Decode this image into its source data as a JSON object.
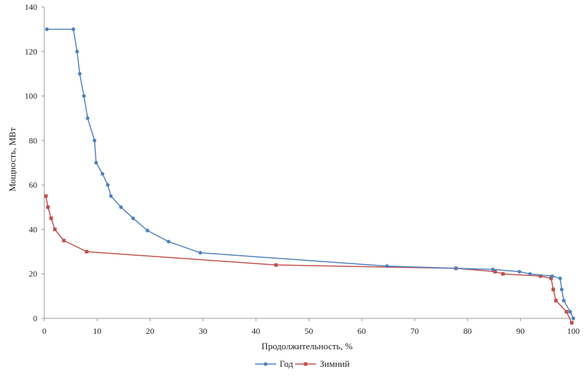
{
  "chart_data": {
    "type": "line",
    "title": "",
    "xlabel": "Продолжительность, %",
    "ylabel": "Мощность, МВт",
    "xlim": [
      0,
      100
    ],
    "ylim": [
      0,
      140
    ],
    "xticks": [
      0,
      10,
      20,
      30,
      40,
      50,
      60,
      70,
      80,
      90,
      100
    ],
    "yticks": [
      0,
      20,
      40,
      60,
      80,
      100,
      120,
      140
    ],
    "grid": false,
    "legend_position": "bottom",
    "series": [
      {
        "name": "Год",
        "color": "#4f81bd",
        "marker": "circle",
        "points": [
          [
            0.5,
            130
          ],
          [
            5.5,
            130
          ],
          [
            6.2,
            120
          ],
          [
            6.7,
            110
          ],
          [
            7.5,
            100
          ],
          [
            8.2,
            90
          ],
          [
            9.5,
            80
          ],
          [
            9.8,
            70
          ],
          [
            11.0,
            65
          ],
          [
            12.0,
            60
          ],
          [
            12.6,
            55
          ],
          [
            14.5,
            50
          ],
          [
            16.8,
            45
          ],
          [
            19.5,
            39.5
          ],
          [
            23.5,
            34.5
          ],
          [
            29.5,
            29.5
          ],
          [
            64.8,
            23.5
          ],
          [
            77.8,
            22.5
          ],
          [
            84.8,
            22
          ],
          [
            89.8,
            21
          ],
          [
            91.8,
            20
          ],
          [
            96.0,
            19
          ],
          [
            97.5,
            18
          ],
          [
            97.8,
            13
          ],
          [
            98.2,
            8
          ],
          [
            99.4,
            3
          ],
          [
            100,
            0
          ]
        ]
      },
      {
        "name": "Зимний",
        "color": "#c0504d",
        "marker": "square",
        "points": [
          [
            0.3,
            55
          ],
          [
            0.7,
            50
          ],
          [
            1.3,
            45
          ],
          [
            2.0,
            40
          ],
          [
            3.7,
            35
          ],
          [
            8.0,
            30
          ],
          [
            43.8,
            24
          ],
          [
            77.8,
            22.5
          ],
          [
            85.2,
            21
          ],
          [
            86.7,
            20
          ],
          [
            93.8,
            19
          ],
          [
            95.8,
            18
          ],
          [
            96.2,
            13
          ],
          [
            96.7,
            8
          ],
          [
            98.7,
            3
          ],
          [
            99.7,
            -2
          ]
        ]
      }
    ]
  }
}
